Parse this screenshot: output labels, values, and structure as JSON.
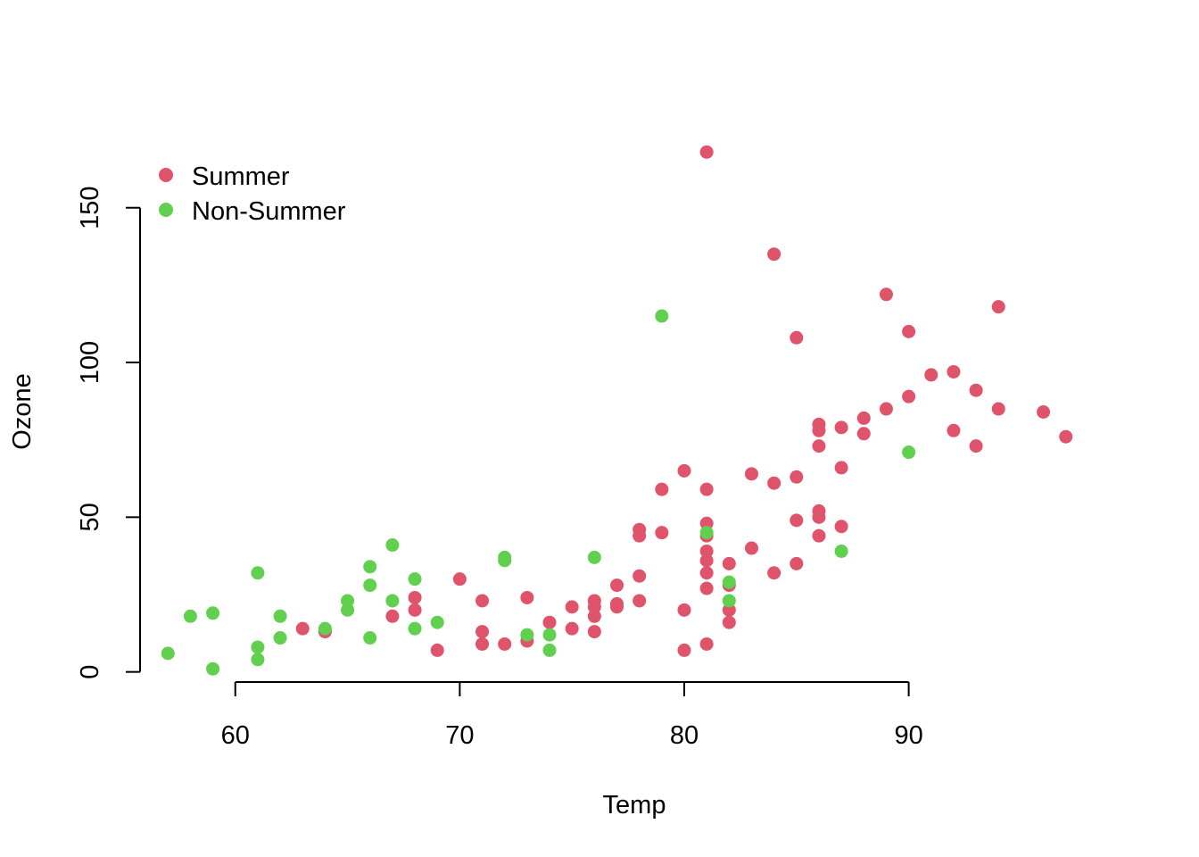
{
  "colors": {
    "summer": "#DF536B",
    "non_summer": "#61D04F"
  },
  "chart_data": {
    "type": "scatter",
    "title": "",
    "xlabel": "Temp",
    "ylabel": "Ozone",
    "xlim": [
      55.4,
      98.6
    ],
    "ylim": [
      -5,
      173
    ],
    "x_ticks": [
      60,
      70,
      80,
      90
    ],
    "y_ticks": [
      0,
      50,
      100,
      150
    ],
    "grid": false,
    "legend": {
      "placement": "top-left",
      "entries": [
        "Summer",
        "Non-Summer"
      ]
    },
    "series": [
      {
        "name": "Summer",
        "color": "#DF536B",
        "points": [
          [
            63,
            14
          ],
          [
            64,
            13
          ],
          [
            67,
            18
          ],
          [
            68,
            24
          ],
          [
            68,
            20
          ],
          [
            69,
            7
          ],
          [
            70,
            30
          ],
          [
            71,
            23
          ],
          [
            71,
            13
          ],
          [
            71,
            9
          ],
          [
            72,
            9
          ],
          [
            73,
            24
          ],
          [
            73,
            10
          ],
          [
            74,
            16
          ],
          [
            75,
            21
          ],
          [
            75,
            14
          ],
          [
            76,
            23
          ],
          [
            76,
            21
          ],
          [
            76,
            18
          ],
          [
            76,
            13
          ],
          [
            77,
            28
          ],
          [
            77,
            22
          ],
          [
            77,
            21
          ],
          [
            78,
            46
          ],
          [
            78,
            44
          ],
          [
            78,
            31
          ],
          [
            78,
            23
          ],
          [
            79,
            59
          ],
          [
            79,
            45
          ],
          [
            80,
            65
          ],
          [
            80,
            20
          ],
          [
            80,
            7
          ],
          [
            81,
            168
          ],
          [
            81,
            59
          ],
          [
            81,
            48
          ],
          [
            81,
            44
          ],
          [
            81,
            39
          ],
          [
            81,
            36
          ],
          [
            81,
            32
          ],
          [
            81,
            27
          ],
          [
            81,
            9
          ],
          [
            82,
            35
          ],
          [
            82,
            28
          ],
          [
            82,
            20
          ],
          [
            82,
            16
          ],
          [
            83,
            64
          ],
          [
            83,
            40
          ],
          [
            84,
            135
          ],
          [
            84,
            61
          ],
          [
            84,
            32
          ],
          [
            85,
            108
          ],
          [
            85,
            63
          ],
          [
            85,
            49
          ],
          [
            85,
            35
          ],
          [
            86,
            80
          ],
          [
            86,
            78
          ],
          [
            86,
            73
          ],
          [
            86,
            52
          ],
          [
            86,
            50
          ],
          [
            86,
            44
          ],
          [
            87,
            79
          ],
          [
            87,
            66
          ],
          [
            87,
            47
          ],
          [
            88,
            82
          ],
          [
            88,
            77
          ],
          [
            89,
            122
          ],
          [
            89,
            85
          ],
          [
            90,
            110
          ],
          [
            90,
            89
          ],
          [
            91,
            96
          ],
          [
            92,
            97
          ],
          [
            92,
            78
          ],
          [
            93,
            91
          ],
          [
            93,
            73
          ],
          [
            94,
            118
          ],
          [
            94,
            85
          ],
          [
            96,
            84
          ],
          [
            97,
            76
          ]
        ]
      },
      {
        "name": "Non-Summer",
        "color": "#61D04F",
        "points": [
          [
            57,
            6
          ],
          [
            58,
            18
          ],
          [
            59,
            19
          ],
          [
            59,
            1
          ],
          [
            61,
            32
          ],
          [
            61,
            8
          ],
          [
            61,
            4
          ],
          [
            62,
            18
          ],
          [
            62,
            11
          ],
          [
            64,
            14
          ],
          [
            65,
            23
          ],
          [
            65,
            20
          ],
          [
            66,
            34
          ],
          [
            66,
            28
          ],
          [
            66,
            11
          ],
          [
            67,
            41
          ],
          [
            67,
            23
          ],
          [
            68,
            30
          ],
          [
            68,
            14
          ],
          [
            69,
            16
          ],
          [
            72,
            37
          ],
          [
            72,
            36
          ],
          [
            73,
            12
          ],
          [
            74,
            12
          ],
          [
            74,
            7
          ],
          [
            76,
            37
          ],
          [
            79,
            115
          ],
          [
            81,
            45
          ],
          [
            82,
            29
          ],
          [
            82,
            23
          ],
          [
            87,
            39
          ],
          [
            90,
            71
          ]
        ]
      }
    ]
  }
}
